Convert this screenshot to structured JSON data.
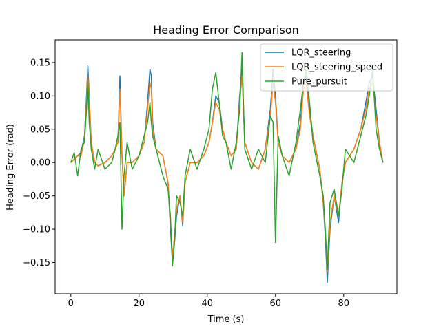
{
  "chart_data": {
    "type": "line",
    "title": "Heading Error Comparison",
    "xlabel": "Time (s)",
    "ylabel": "Heading Error (rad)",
    "xlim": [
      -4.6,
      95.6
    ],
    "ylim": [
      -0.197,
      0.184
    ],
    "xticks": [
      0,
      20,
      40,
      60,
      80
    ],
    "yticks": [
      -0.15,
      -0.1,
      -0.05,
      0.0,
      0.05,
      0.1,
      0.15
    ],
    "ytick_labels": [
      "−0.15",
      "−0.10",
      "−0.05",
      "0.00",
      "0.05",
      "0.10",
      "0.15"
    ],
    "legend_position": "top-right",
    "grid": false,
    "series": [
      {
        "name": "LQR_steering",
        "color": "#1f77b4",
        "x": [
          0,
          2,
          3,
          4,
          4.6,
          5,
          5.4,
          6,
          7,
          8,
          10,
          12,
          13,
          13.8,
          14.4,
          15,
          15.6,
          16.5,
          18,
          20,
          21.5,
          22.5,
          23.2,
          23.6,
          24,
          25,
          27,
          28.5,
          29.2,
          29.8,
          30.4,
          31,
          32,
          32.8,
          33.5,
          35,
          37,
          39,
          40.5,
          41.5,
          42.5,
          43.5,
          44.5,
          45.5,
          47,
          48.5,
          49.5,
          50.2,
          51,
          53,
          55,
          57,
          58.5,
          59.3,
          60,
          60.8,
          62,
          64,
          66,
          67.3,
          68.2,
          69,
          70,
          71,
          73,
          74,
          74.6,
          75.2,
          76,
          77.2,
          78.5,
          79.5,
          80.5,
          83,
          85,
          86.5,
          87.5,
          88.5,
          89.5,
          90.5,
          91.5
        ],
        "y": [
          0.0,
          0.01,
          0.015,
          0.04,
          0.1,
          0.145,
          0.1,
          0.03,
          0.0,
          -0.005,
          0.0,
          0.01,
          0.02,
          0.03,
          0.13,
          0.01,
          -0.05,
          0.0,
          0.0,
          0.01,
          0.03,
          0.09,
          0.14,
          0.13,
          0.06,
          0.02,
          0.01,
          -0.03,
          -0.1,
          -0.15,
          -0.12,
          -0.08,
          -0.05,
          -0.095,
          -0.03,
          0.0,
          0.0,
          0.01,
          0.03,
          0.06,
          0.1,
          0.09,
          0.05,
          0.03,
          0.01,
          0.02,
          0.1,
          0.14,
          0.03,
          0.0,
          -0.01,
          0.02,
          0.08,
          0.14,
          0.1,
          0.03,
          0.01,
          0.0,
          0.02,
          0.06,
          0.12,
          0.13,
          0.08,
          0.04,
          -0.01,
          -0.06,
          -0.11,
          -0.18,
          -0.1,
          -0.05,
          -0.09,
          -0.03,
          0.0,
          0.02,
          0.05,
          0.09,
          0.12,
          0.13,
          0.08,
          0.03,
          0.0
        ]
      },
      {
        "name": "LQR_steering_speed",
        "color": "#ff7f0e",
        "x": [
          0,
          2,
          3,
          4,
          4.6,
          5,
          5.4,
          6,
          7,
          8,
          10,
          12,
          13,
          13.8,
          14.4,
          15,
          15.6,
          16.5,
          18,
          20,
          21.5,
          22.5,
          23.2,
          23.6,
          24,
          25,
          27,
          28.5,
          29.2,
          29.8,
          30.4,
          31,
          32,
          32.8,
          33.5,
          35,
          37,
          39,
          40.5,
          41.5,
          42.5,
          43.5,
          44.5,
          45.5,
          47,
          48.5,
          49.5,
          50.2,
          51,
          53,
          55,
          57,
          58.5,
          59.3,
          60,
          60.8,
          62,
          64,
          66,
          67.3,
          68.2,
          69,
          70,
          71,
          73,
          74,
          74.6,
          75.2,
          76,
          77.2,
          78.5,
          79.5,
          80.5,
          83,
          85,
          86.5,
          87.5,
          88.5,
          89.5,
          90.5,
          91.5
        ],
        "y": [
          0.0,
          0.01,
          0.01,
          0.035,
          0.09,
          0.13,
          0.09,
          0.03,
          0.0,
          -0.005,
          0.0,
          0.01,
          0.02,
          0.03,
          0.11,
          0.01,
          -0.05,
          0.0,
          0.0,
          0.01,
          0.03,
          0.08,
          0.12,
          0.11,
          0.05,
          0.02,
          0.01,
          -0.03,
          -0.09,
          -0.14,
          -0.11,
          -0.07,
          -0.05,
          -0.09,
          -0.03,
          0.0,
          0.0,
          0.01,
          0.03,
          0.06,
          0.09,
          0.08,
          0.05,
          0.03,
          0.01,
          0.02,
          0.09,
          0.13,
          0.03,
          0.0,
          -0.01,
          0.02,
          0.07,
          0.12,
          0.09,
          0.03,
          0.01,
          0.0,
          0.02,
          0.05,
          0.11,
          0.12,
          0.07,
          0.04,
          -0.01,
          -0.06,
          -0.1,
          -0.165,
          -0.09,
          -0.05,
          -0.08,
          -0.03,
          0.0,
          0.02,
          0.05,
          0.08,
          0.11,
          0.12,
          0.07,
          0.03,
          0.0
        ]
      },
      {
        "name": "Pure_pursuit",
        "color": "#2ca02c",
        "x": [
          0,
          1,
          2,
          3,
          4,
          4.6,
          5,
          5.4,
          6,
          7,
          8,
          10,
          12,
          13,
          13.8,
          14.4,
          15,
          15.6,
          16.5,
          18,
          20,
          21.5,
          22.5,
          23.2,
          23.6,
          24,
          25,
          27,
          28.5,
          29.2,
          29.8,
          30.4,
          31,
          32,
          32.8,
          33.5,
          35,
          37,
          39,
          40.5,
          41.5,
          42.5,
          43.5,
          44.5,
          45.5,
          47,
          48.5,
          49.5,
          50.2,
          51,
          53,
          55,
          57,
          58.5,
          59.3,
          60,
          60.8,
          62,
          64,
          66,
          67.3,
          68.2,
          69,
          70,
          71,
          73,
          74,
          74.6,
          75.2,
          76,
          77.2,
          78.5,
          79.5,
          80.5,
          83,
          85,
          86.5,
          87.5,
          88.5,
          89.5,
          90.5,
          91.5
        ],
        "y": [
          0.0,
          0.015,
          -0.02,
          0.02,
          0.03,
          0.08,
          0.12,
          0.06,
          0.02,
          -0.01,
          0.02,
          -0.01,
          0.0,
          0.02,
          0.04,
          0.06,
          -0.1,
          -0.02,
          0.03,
          -0.01,
          0.01,
          0.04,
          0.06,
          0.09,
          0.06,
          0.04,
          0.02,
          -0.02,
          -0.04,
          -0.08,
          -0.155,
          -0.12,
          -0.05,
          -0.06,
          -0.08,
          -0.02,
          0.02,
          -0.01,
          0.02,
          0.05,
          0.11,
          0.135,
          0.09,
          0.04,
          0.03,
          -0.01,
          0.03,
          0.08,
          0.165,
          0.02,
          -0.01,
          0.02,
          0.0,
          0.07,
          0.06,
          -0.12,
          0.04,
          0.01,
          -0.02,
          0.03,
          0.08,
          0.12,
          0.14,
          0.09,
          0.03,
          -0.02,
          -0.05,
          -0.1,
          -0.16,
          -0.06,
          -0.04,
          -0.08,
          -0.04,
          0.02,
          0.0,
          0.04,
          0.07,
          0.1,
          0.14,
          0.05,
          0.02,
          0.0
        ]
      }
    ]
  }
}
